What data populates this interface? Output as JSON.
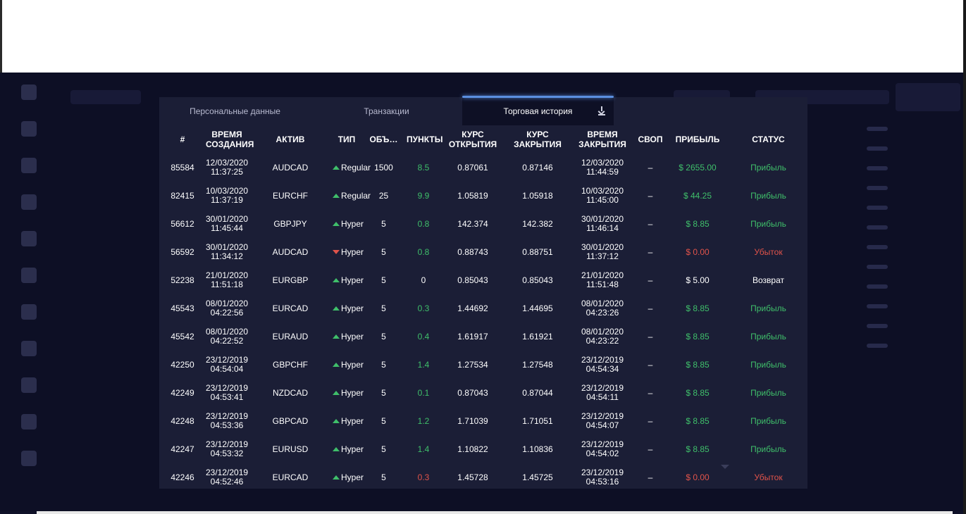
{
  "tabs": [
    {
      "label": "Персональные данные",
      "active": false
    },
    {
      "label": "Транзакции",
      "active": false
    },
    {
      "label": "Торговая история",
      "active": true
    }
  ],
  "table": {
    "headers": [
      "#",
      "ВРЕМЯ СОЗДАНИЯ",
      "АКТИВ",
      "ТИП",
      "ОБЪ…",
      "ПУНКТЫ",
      "КУРС ОТКРЫТИЯ",
      "КУРС ЗАКРЫТИЯ",
      "ВРЕМЯ ЗАКРЫТИЯ",
      "СВОП",
      "ПРИБЫЛЬ",
      "СТАТУС"
    ],
    "rows": [
      {
        "id": "85584",
        "created_date": "12/03/2020",
        "created_time": "11:37:25",
        "asset": "AUDCAD",
        "direction": "up",
        "type": "Regular",
        "volume": "1500",
        "points": "8.5",
        "points_color": "green",
        "open": "0.87061",
        "close": "0.87146",
        "closed_date": "12/03/2020",
        "closed_time": "11:44:59",
        "swap": "–",
        "profit": "$ 2655.00",
        "profit_color": "green",
        "status": "Прибыль",
        "status_color": "green"
      },
      {
        "id": "82415",
        "created_date": "10/03/2020",
        "created_time": "11:37:19",
        "asset": "EURCHF",
        "direction": "up",
        "type": "Regular",
        "volume": "25",
        "points": "9.9",
        "points_color": "green",
        "open": "1.05819",
        "close": "1.05918",
        "closed_date": "10/03/2020",
        "closed_time": "11:45:00",
        "swap": "–",
        "profit": "$ 44.25",
        "profit_color": "green",
        "status": "Прибыль",
        "status_color": "green"
      },
      {
        "id": "56612",
        "created_date": "30/01/2020",
        "created_time": "11:45:44",
        "asset": "GBPJPY",
        "direction": "up",
        "type": "Hyper",
        "volume": "5",
        "points": "0.8",
        "points_color": "green",
        "open": "142.374",
        "close": "142.382",
        "closed_date": "30/01/2020",
        "closed_time": "11:46:14",
        "swap": "–",
        "profit": "$ 8.85",
        "profit_color": "green",
        "status": "Прибыль",
        "status_color": "green"
      },
      {
        "id": "56592",
        "created_date": "30/01/2020",
        "created_time": "11:34:12",
        "asset": "AUDCAD",
        "direction": "down",
        "type": "Hyper",
        "volume": "5",
        "points": "0.8",
        "points_color": "green",
        "open": "0.88743",
        "close": "0.88751",
        "closed_date": "30/01/2020",
        "closed_time": "11:37:12",
        "swap": "–",
        "profit": "$ 0.00",
        "profit_color": "red",
        "status": "Убыток",
        "status_color": "red"
      },
      {
        "id": "52238",
        "created_date": "21/01/2020",
        "created_time": "11:51:18",
        "asset": "EURGBP",
        "direction": "up",
        "type": "Hyper",
        "volume": "5",
        "points": "0",
        "points_color": "white",
        "open": "0.85043",
        "close": "0.85043",
        "closed_date": "21/01/2020",
        "closed_time": "11:51:48",
        "swap": "–",
        "profit": "$ 5.00",
        "profit_color": "white",
        "status": "Возврат",
        "status_color": "white"
      },
      {
        "id": "45543",
        "created_date": "08/01/2020",
        "created_time": "04:22:56",
        "asset": "EURCAD",
        "direction": "up",
        "type": "Hyper",
        "volume": "5",
        "points": "0.3",
        "points_color": "green",
        "open": "1.44692",
        "close": "1.44695",
        "closed_date": "08/01/2020",
        "closed_time": "04:23:26",
        "swap": "–",
        "profit": "$ 8.85",
        "profit_color": "green",
        "status": "Прибыль",
        "status_color": "green"
      },
      {
        "id": "45542",
        "created_date": "08/01/2020",
        "created_time": "04:22:52",
        "asset": "EURAUD",
        "direction": "up",
        "type": "Hyper",
        "volume": "5",
        "points": "0.4",
        "points_color": "green",
        "open": "1.61917",
        "close": "1.61921",
        "closed_date": "08/01/2020",
        "closed_time": "04:23:22",
        "swap": "–",
        "profit": "$ 8.85",
        "profit_color": "green",
        "status": "Прибыль",
        "status_color": "green"
      },
      {
        "id": "42250",
        "created_date": "23/12/2019",
        "created_time": "04:54:04",
        "asset": "GBPCHF",
        "direction": "up",
        "type": "Hyper",
        "volume": "5",
        "points": "1.4",
        "points_color": "green",
        "open": "1.27534",
        "close": "1.27548",
        "closed_date": "23/12/2019",
        "closed_time": "04:54:34",
        "swap": "–",
        "profit": "$ 8.85",
        "profit_color": "green",
        "status": "Прибыль",
        "status_color": "green"
      },
      {
        "id": "42249",
        "created_date": "23/12/2019",
        "created_time": "04:53:41",
        "asset": "NZDCAD",
        "direction": "up",
        "type": "Hyper",
        "volume": "5",
        "points": "0.1",
        "points_color": "green",
        "open": "0.87043",
        "close": "0.87044",
        "closed_date": "23/12/2019",
        "closed_time": "04:54:11",
        "swap": "–",
        "profit": "$ 8.85",
        "profit_color": "green",
        "status": "Прибыль",
        "status_color": "green"
      },
      {
        "id": "42248",
        "created_date": "23/12/2019",
        "created_time": "04:53:36",
        "asset": "GBPCAD",
        "direction": "up",
        "type": "Hyper",
        "volume": "5",
        "points": "1.2",
        "points_color": "green",
        "open": "1.71039",
        "close": "1.71051",
        "closed_date": "23/12/2019",
        "closed_time": "04:54:07",
        "swap": "–",
        "profit": "$ 8.85",
        "profit_color": "green",
        "status": "Прибыль",
        "status_color": "green"
      },
      {
        "id": "42247",
        "created_date": "23/12/2019",
        "created_time": "04:53:32",
        "asset": "EURUSD",
        "direction": "up",
        "type": "Hyper",
        "volume": "5",
        "points": "1.4",
        "points_color": "green",
        "open": "1.10822",
        "close": "1.10836",
        "closed_date": "23/12/2019",
        "closed_time": "04:54:02",
        "swap": "–",
        "profit": "$ 8.85",
        "profit_color": "green",
        "status": "Прибыль",
        "status_color": "green"
      },
      {
        "id": "42246",
        "created_date": "23/12/2019",
        "created_time": "04:52:46",
        "asset": "EURCAD",
        "direction": "up",
        "type": "Hyper",
        "volume": "5",
        "points": "0.3",
        "points_color": "red",
        "open": "1.45728",
        "close": "1.45725",
        "closed_date": "23/12/2019",
        "closed_time": "04:53:16",
        "swap": "–",
        "profit": "$ 0.00",
        "profit_color": "red",
        "status": "Убыток",
        "status_color": "red"
      }
    ]
  },
  "colors": {
    "green": "#3fbf6a",
    "red": "#e0534a",
    "accent": "#5b8fe0",
    "dialog_bg": "#1b1e36"
  },
  "icons": {
    "download": "download-icon",
    "up": "triangle-up-icon",
    "down": "triangle-down-icon"
  }
}
